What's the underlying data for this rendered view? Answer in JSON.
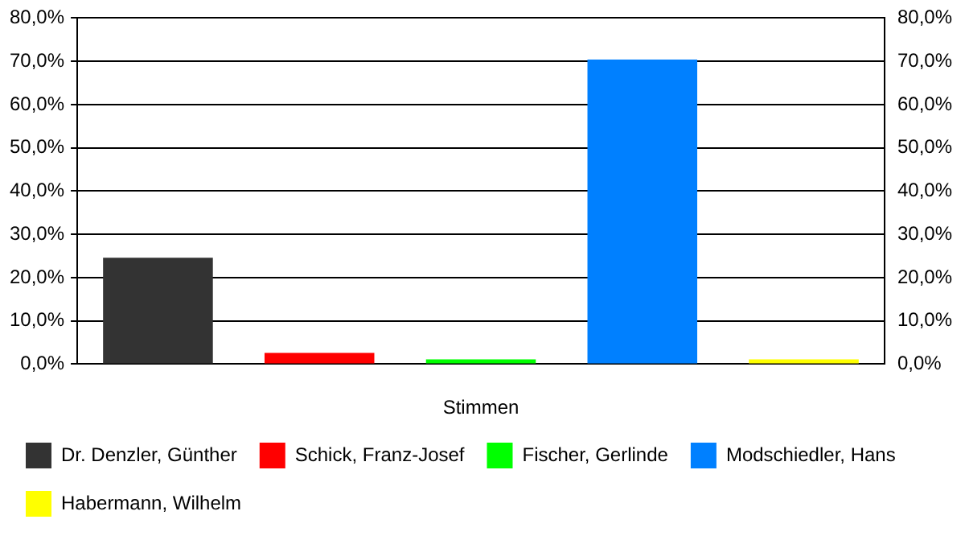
{
  "chart_data": {
    "type": "bar",
    "xlabel": "Stimmen",
    "categories": [
      null
    ],
    "series": [
      {
        "name": "Dr. Denzler, Günther",
        "color": "#333333",
        "values": [
          24.6
        ]
      },
      {
        "name": "Schick, Franz-Josef",
        "color": "#ff0000",
        "values": [
          2.6
        ]
      },
      {
        "name": "Fischer, Gerlinde",
        "color": "#00ff00",
        "values": [
          1.1
        ]
      },
      {
        "name": "Modschiedler, Hans",
        "color": "#0080ff",
        "values": [
          70.4
        ]
      },
      {
        "name": "Habermann, Wilhelm",
        "color": "#ffff00",
        "values": [
          1.1
        ]
      }
    ],
    "ylim": [
      0,
      80
    ],
    "yticks": [
      {
        "value": 0,
        "label": "0,0%"
      },
      {
        "value": 10,
        "label": "10,0%"
      },
      {
        "value": 20,
        "label": "20,0%"
      },
      {
        "value": 30,
        "label": "30,0%"
      },
      {
        "value": 40,
        "label": "40,0%"
      },
      {
        "value": 50,
        "label": "50,0%"
      },
      {
        "value": 60,
        "label": "60,0%"
      },
      {
        "value": 70,
        "label": "70,0%"
      },
      {
        "value": 80,
        "label": "80,0%"
      }
    ],
    "y2lim": [
      0,
      80
    ],
    "y2ticks": [
      {
        "value": 0,
        "label": "0,0%"
      },
      {
        "value": 10,
        "label": "10,0%"
      },
      {
        "value": 20,
        "label": "20,0%"
      },
      {
        "value": 30,
        "label": "30,0%"
      },
      {
        "value": 40,
        "label": "40,0%"
      },
      {
        "value": 50,
        "label": "50,0%"
      },
      {
        "value": 60,
        "label": "60,0%"
      },
      {
        "value": 70,
        "label": "70,0%"
      },
      {
        "value": 80,
        "label": "80,0%"
      }
    ],
    "grid": "y",
    "legend": "bottom"
  }
}
